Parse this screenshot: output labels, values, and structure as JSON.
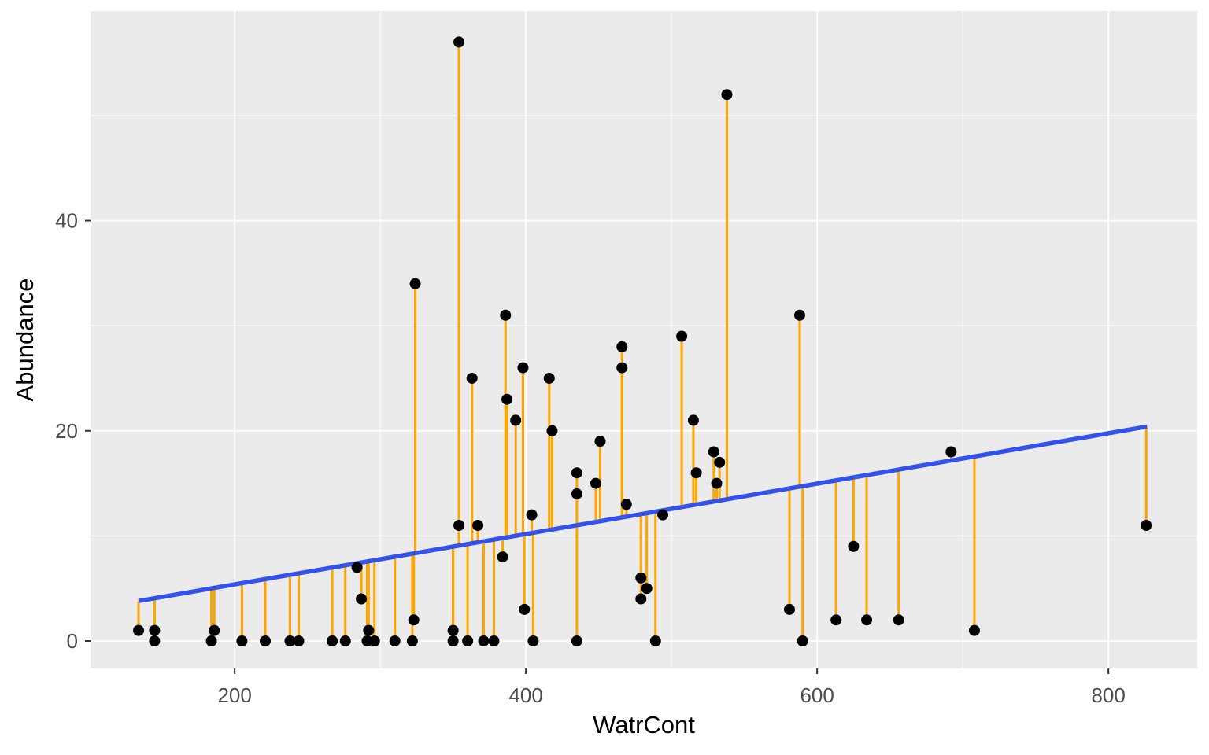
{
  "chart_data": {
    "type": "scatter",
    "title": "",
    "xlabel": "WatrCont",
    "ylabel": "Abundance",
    "x_major_ticks": [
      200,
      400,
      600,
      800
    ],
    "x_minor_ticks": [
      300,
      500,
      700
    ],
    "y_major_ticks": [
      0,
      20,
      40
    ],
    "y_minor_ticks": [
      10,
      30,
      50
    ],
    "xlim": [
      101,
      861
    ],
    "ylim": [
      -2.62,
      59.95
    ],
    "grid": true,
    "legend_position": "none",
    "points": [
      [
        134,
        1
      ],
      [
        145,
        1
      ],
      [
        145,
        0
      ],
      [
        184,
        0
      ],
      [
        186,
        1
      ],
      [
        205,
        0
      ],
      [
        221,
        0
      ],
      [
        238,
        0
      ],
      [
        244,
        0
      ],
      [
        267,
        0
      ],
      [
        276,
        0
      ],
      [
        284,
        7
      ],
      [
        287,
        4
      ],
      [
        291,
        0
      ],
      [
        292,
        1
      ],
      [
        296,
        0
      ],
      [
        310,
        0
      ],
      [
        322,
        0
      ],
      [
        323,
        2
      ],
      [
        324,
        34
      ],
      [
        350,
        1
      ],
      [
        350,
        0
      ],
      [
        354,
        57
      ],
      [
        354,
        11
      ],
      [
        360,
        0
      ],
      [
        363,
        25
      ],
      [
        367,
        11
      ],
      [
        371,
        0
      ],
      [
        378,
        0
      ],
      [
        384,
        8
      ],
      [
        386,
        31
      ],
      [
        387,
        23
      ],
      [
        393,
        21
      ],
      [
        398,
        26
      ],
      [
        399,
        3
      ],
      [
        404,
        12
      ],
      [
        405,
        0
      ],
      [
        416,
        25
      ],
      [
        418,
        20
      ],
      [
        435,
        16
      ],
      [
        435,
        14
      ],
      [
        435,
        0
      ],
      [
        448,
        15
      ],
      [
        451,
        19
      ],
      [
        466,
        28
      ],
      [
        466,
        26
      ],
      [
        469,
        13
      ],
      [
        479,
        6
      ],
      [
        479,
        4
      ],
      [
        483,
        5
      ],
      [
        489,
        0
      ],
      [
        494,
        12
      ],
      [
        507,
        29
      ],
      [
        515,
        21
      ],
      [
        517,
        16
      ],
      [
        529,
        18
      ],
      [
        531,
        15
      ],
      [
        533,
        17
      ],
      [
        538,
        52
      ],
      [
        581,
        3
      ],
      [
        588,
        31
      ],
      [
        590,
        0
      ],
      [
        613,
        2
      ],
      [
        625,
        9
      ],
      [
        634,
        2
      ],
      [
        656,
        2
      ],
      [
        692,
        18
      ],
      [
        708,
        1
      ],
      [
        826,
        11
      ]
    ],
    "regression_line": {
      "x1": 134,
      "y1": 3.8,
      "x2": 826.5,
      "y2": 20.4
    },
    "residual_segments": true,
    "colors": {
      "point": "#000000",
      "segment": "#FFA500",
      "line": "#3352EC",
      "panel": "#EBEBEB",
      "grid": "#FFFFFF",
      "tick_mark": "#333333",
      "tick_label": "#4D4D4D",
      "axis_title": "#000000",
      "background": "#FFFFFF"
    }
  }
}
